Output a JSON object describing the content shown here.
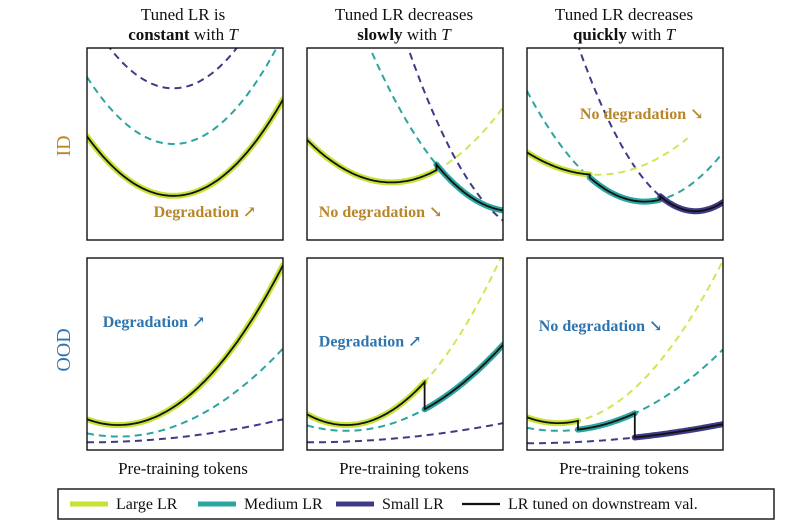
{
  "colors": {
    "large": "#c6e234",
    "large_dashed": "#d1e655",
    "medium": "#2aa5a0",
    "small": "#3f3a86",
    "tuned": "#111111",
    "id_label": "#b8862a",
    "ood_label": "#2e74ae"
  },
  "chart_data": {
    "type": "line",
    "columns": [
      {
        "title_line1": "Tuned LR is",
        "title_bold": "constant",
        "title_rest": " with ",
        "title_var": "T"
      },
      {
        "title_line1": "Tuned LR decreases",
        "title_bold": "slowly",
        "title_rest": " with ",
        "title_var": "T"
      },
      {
        "title_line1": "Tuned LR decreases",
        "title_bold": "quickly",
        "title_rest": " with ",
        "title_var": "T"
      }
    ],
    "rows": [
      "ID",
      "OOD"
    ],
    "xlabel": "Pre-training tokens",
    "x_range": [
      0,
      10
    ],
    "y_range": [
      0,
      10
    ],
    "annotations": [
      {
        "row": 0,
        "col": 0,
        "text": "Degradation",
        "arrow": "↗"
      },
      {
        "row": 0,
        "col": 1,
        "text": "No degradation",
        "arrow": "↘"
      },
      {
        "row": 0,
        "col": 2,
        "text": "No degradation",
        "arrow": "↘"
      },
      {
        "row": 1,
        "col": 0,
        "text": "Degradation",
        "arrow": "↗"
      },
      {
        "row": 1,
        "col": 1,
        "text": "Degradation",
        "arrow": "↗"
      },
      {
        "row": 1,
        "col": 2,
        "text": "No degradation",
        "arrow": "↘"
      }
    ],
    "legend": [
      {
        "key": "large",
        "label": "Large LR"
      },
      {
        "key": "medium",
        "label": "Medium LR"
      },
      {
        "key": "small",
        "label": "Small LR"
      },
      {
        "key": "tuned",
        "label": "LR tuned on downstream val."
      }
    ],
    "panels": [
      {
        "row": 0,
        "col": 0,
        "series": [
          {
            "key": "small",
            "style": "dashed",
            "curve": {
              "a": 0.2,
              "h": 4.4,
              "k": 7.9
            },
            "range": [
              0,
              10
            ]
          },
          {
            "key": "medium",
            "style": "dashed",
            "curve": {
              "a": 0.18,
              "h": 4.4,
              "k": 5.0
            },
            "range": [
              0,
              10
            ]
          },
          {
            "key": "large",
            "style": "solid",
            "curve": {
              "a": 0.16,
              "h": 4.4,
              "k": 2.3
            },
            "range": [
              0,
              10
            ]
          }
        ],
        "tuned": [
          {
            "curve": {
              "a": 0.16,
              "h": 4.4,
              "k": 2.3
            },
            "range": [
              0,
              10
            ]
          }
        ]
      },
      {
        "row": 0,
        "col": 1,
        "series": [
          {
            "key": "small",
            "style": "dashed",
            "curve": {
              "a": 0.22,
              "h": 11.8,
              "k": 0.3
            },
            "range": [
              0,
              10
            ]
          },
          {
            "key": "medium",
            "style": "dashed",
            "curve": {
              "a": 0.16,
              "h": 10.5,
              "k": 1.5
            },
            "range": [
              0,
              10
            ]
          },
          {
            "key": "large",
            "style": "dashed",
            "curve": {
              "a": 0.12,
              "h": 4.3,
              "k": 3.0
            },
            "range": [
              0,
              10
            ]
          },
          {
            "key": "large",
            "style": "solid",
            "curve": {
              "a": 0.12,
              "h": 4.3,
              "k": 3.0
            },
            "range": [
              0,
              6.6
            ]
          },
          {
            "key": "medium",
            "style": "solid",
            "curve": {
              "a": 0.16,
              "h": 10.5,
              "k": 1.5
            },
            "range": [
              6.6,
              10
            ]
          }
        ],
        "tuned": [
          {
            "curve": {
              "a": 0.12,
              "h": 4.3,
              "k": 3.0
            },
            "range": [
              0,
              6.6
            ]
          },
          {
            "curve": {
              "a": 0.16,
              "h": 10.5,
              "k": 1.5
            },
            "range": [
              6.6,
              10
            ]
          }
        ]
      },
      {
        "row": 0,
        "col": 2,
        "series": [
          {
            "key": "small",
            "style": "dashed",
            "curve": {
              "a": 0.24,
              "h": 8.6,
              "k": 1.5
            },
            "range": [
              0,
              10
            ]
          },
          {
            "key": "medium",
            "style": "dashed",
            "curve": {
              "a": 0.16,
              "h": 6.0,
              "k": 2.0
            },
            "range": [
              0,
              10
            ]
          },
          {
            "key": "large",
            "style": "dashed",
            "curve": {
              "a": 0.09,
              "h": 3.6,
              "k": 3.4
            },
            "range": [
              0,
              8.2
            ]
          },
          {
            "key": "large",
            "style": "solid",
            "curve": {
              "a": 0.09,
              "h": 3.6,
              "k": 3.4
            },
            "range": [
              0,
              3.2
            ]
          },
          {
            "key": "medium",
            "style": "solid",
            "curve": {
              "a": 0.16,
              "h": 6.0,
              "k": 2.0
            },
            "range": [
              3.2,
              6.8
            ]
          },
          {
            "key": "small",
            "style": "solid",
            "curve": {
              "a": 0.24,
              "h": 8.6,
              "k": 1.5
            },
            "range": [
              6.8,
              10
            ]
          }
        ],
        "tuned": [
          {
            "curve": {
              "a": 0.09,
              "h": 3.6,
              "k": 3.4
            },
            "range": [
              0,
              3.2
            ]
          },
          {
            "curve": {
              "a": 0.16,
              "h": 6.0,
              "k": 2.0
            },
            "range": [
              3.2,
              6.8
            ]
          },
          {
            "curve": {
              "a": 0.24,
              "h": 8.6,
              "k": 1.5
            },
            "range": [
              6.8,
              10
            ]
          }
        ]
      },
      {
        "row": 1,
        "col": 0,
        "series": [
          {
            "key": "small",
            "style": "dashed",
            "curve": {
              "a": 0.012,
              "h": 0,
              "k": 0.4
            },
            "range": [
              0,
              10
            ]
          },
          {
            "key": "medium",
            "style": "dashed",
            "curve": {
              "a": 0.065,
              "h": 1.6,
              "k": 0.7
            },
            "range": [
              0,
              10
            ]
          },
          {
            "key": "large",
            "style": "solid",
            "curve": {
              "a": 0.118,
              "h": 1.6,
              "k": 1.3
            },
            "range": [
              0,
              10
            ]
          }
        ],
        "tuned": [
          {
            "curve": {
              "a": 0.118,
              "h": 1.6,
              "k": 1.3
            },
            "range": [
              0,
              10
            ]
          }
        ]
      },
      {
        "row": 1,
        "col": 1,
        "series": [
          {
            "key": "small",
            "style": "dashed",
            "curve": {
              "a": 0.01,
              "h": 0,
              "k": 0.4
            },
            "range": [
              0,
              10
            ]
          },
          {
            "key": "large",
            "style": "dashed",
            "curve": {
              "a": 0.14,
              "h": 2.0,
              "k": 1.3
            },
            "range": [
              0,
              10
            ]
          },
          {
            "key": "medium",
            "style": "dashed",
            "curve": {
              "a": 0.07,
              "h": 2.0,
              "k": 1.0
            },
            "range": [
              0,
              10
            ]
          },
          {
            "key": "large",
            "style": "solid",
            "curve": {
              "a": 0.14,
              "h": 2.0,
              "k": 1.3
            },
            "range": [
              0,
              6.0
            ]
          },
          {
            "key": "medium",
            "style": "solid",
            "curve": {
              "a": 0.07,
              "h": 2.0,
              "k": 1.0
            },
            "range": [
              6.0,
              10
            ]
          }
        ],
        "tuned": [
          {
            "curve": {
              "a": 0.14,
              "h": 2.0,
              "k": 1.3
            },
            "range": [
              0,
              6.0
            ]
          },
          {
            "curve": {
              "a": 0.07,
              "h": 2.0,
              "k": 1.0
            },
            "range": [
              6.0,
              10
            ]
          }
        ]
      },
      {
        "row": 1,
        "col": 2,
        "series": [
          {
            "key": "small",
            "style": "dashed",
            "curve": {
              "a": 0.01,
              "h": 0,
              "k": 0.35
            },
            "range": [
              0,
              10
            ]
          },
          {
            "key": "large",
            "style": "dashed",
            "curve": {
              "a": 0.12,
              "h": 1.6,
              "k": 1.4
            },
            "range": [
              0,
              10
            ]
          },
          {
            "key": "medium",
            "style": "dashed",
            "curve": {
              "a": 0.06,
              "h": 1.6,
              "k": 1.0
            },
            "range": [
              0,
              10
            ]
          },
          {
            "key": "large",
            "style": "solid",
            "curve": {
              "a": 0.12,
              "h": 1.6,
              "k": 1.4
            },
            "range": [
              0,
              2.6
            ]
          },
          {
            "key": "medium",
            "style": "solid",
            "curve": {
              "a": 0.06,
              "h": 1.6,
              "k": 1.0
            },
            "range": [
              2.6,
              5.5
            ]
          },
          {
            "key": "small",
            "style": "solid",
            "curve": {
              "a": 0.01,
              "h": 0,
              "k": 0.35
            },
            "range": [
              5.5,
              10
            ]
          }
        ],
        "tuned": [
          {
            "curve": {
              "a": 0.12,
              "h": 1.6,
              "k": 1.4
            },
            "range": [
              0,
              2.6
            ]
          },
          {
            "curve": {
              "a": 0.06,
              "h": 1.6,
              "k": 1.0
            },
            "range": [
              2.6,
              5.5
            ]
          },
          {
            "curve": {
              "a": 0.01,
              "h": 0,
              "k": 0.35
            },
            "range": [
              5.5,
              10
            ]
          }
        ]
      }
    ]
  }
}
